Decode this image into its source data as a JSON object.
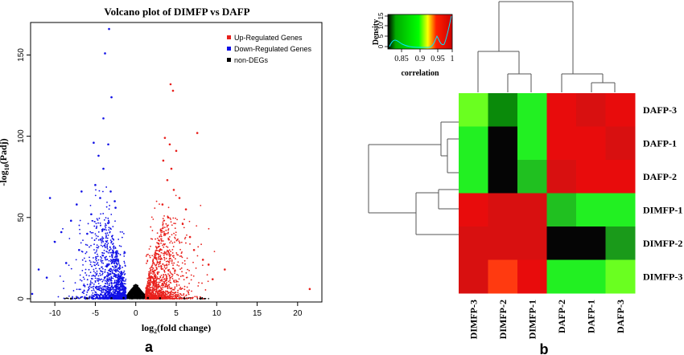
{
  "figure": {
    "panel_a_label": "a",
    "panel_b_label": "b"
  },
  "chart_data": [
    {
      "type": "scatter",
      "title": "Volcano plot of DIMFP vs DAFP",
      "xlabel": "log2(fold change)",
      "ylabel": "-log10(Padj)",
      "xlim": [
        -13,
        23
      ],
      "ylim": [
        -2,
        170
      ],
      "xticks": [
        -10,
        -5,
        0,
        5,
        10,
        15,
        20
      ],
      "yticks": [
        0,
        50,
        100,
        150
      ],
      "legend_position": "top-right",
      "series": [
        {
          "name": "Up-Regulated Genes",
          "color": "#e8201c",
          "points": [
            [
              4.3,
              132
            ],
            [
              4.6,
              128
            ],
            [
              7.6,
              102
            ],
            [
              3.6,
              99
            ],
            [
              4.2,
              95
            ],
            [
              5.0,
              91
            ],
            [
              3.4,
              85
            ],
            [
              4.4,
              80
            ],
            [
              3.9,
              73
            ],
            [
              4.7,
              67
            ],
            [
              5.4,
              62
            ],
            [
              3.3,
              58
            ],
            [
              6.2,
              55
            ],
            [
              4.0,
              50
            ],
            [
              5.8,
              46
            ],
            [
              3.1,
              42
            ],
            [
              6.7,
              38
            ],
            [
              7.2,
              30
            ],
            [
              8.3,
              24
            ],
            [
              9.0,
              21
            ],
            [
              11.0,
              18
            ],
            [
              21.5,
              6
            ],
            [
              9.5,
              12
            ],
            [
              2.8,
              34
            ],
            [
              3.6,
              28
            ]
          ]
        },
        {
          "name": "Down-Regulated Genes",
          "color": "#1010e6",
          "points": [
            [
              -3.3,
              166
            ],
            [
              -3.8,
              151
            ],
            [
              -3.0,
              124
            ],
            [
              -4.0,
              111
            ],
            [
              -5.2,
              96
            ],
            [
              -3.4,
              95
            ],
            [
              -4.6,
              88
            ],
            [
              -6.7,
              66
            ],
            [
              -7.3,
              58
            ],
            [
              -4.0,
              80
            ],
            [
              -5.0,
              70
            ],
            [
              -3.1,
              66
            ],
            [
              -2.6,
              60
            ],
            [
              -8.0,
              48
            ],
            [
              -9.2,
              41
            ],
            [
              -10.0,
              35
            ],
            [
              -10.6,
              62
            ],
            [
              -12.0,
              18
            ],
            [
              -11.0,
              13
            ],
            [
              -12.8,
              3
            ],
            [
              -2.5,
              56
            ],
            [
              -5.5,
              52
            ],
            [
              -4.4,
              62
            ],
            [
              -6.0,
              40
            ],
            [
              -7.0,
              30
            ],
            [
              -8.6,
              22
            ]
          ]
        },
        {
          "name": "non-DEGs",
          "color": "#000000",
          "points": [
            [
              0,
              1
            ],
            [
              0.5,
              4
            ],
            [
              -0.5,
              4
            ],
            [
              -1.0,
              1
            ],
            [
              1.0,
              1
            ],
            [
              0.2,
              8
            ],
            [
              -0.2,
              8
            ],
            [
              -1.5,
              0.5
            ],
            [
              1.5,
              0.5
            ],
            [
              -3,
              0.3
            ],
            [
              3,
              0.3
            ],
            [
              -6,
              0.2
            ],
            [
              6,
              0.2
            ],
            [
              8,
              0.1
            ],
            [
              -8,
              0.1
            ]
          ]
        }
      ]
    },
    {
      "type": "heatmap",
      "rows": [
        "DAFP-3",
        "DAFP-1",
        "DAFP-2",
        "DIMFP-1",
        "DIMFP-2",
        "DIMFP-3"
      ],
      "columns": [
        "DIMFP-3",
        "DIMFP-2",
        "DIMFP-1",
        "DAFP-2",
        "DAFP-1",
        "DAFP-3"
      ],
      "values": [
        [
          0.87,
          0.83,
          0.86,
          0.99,
          0.985,
          0.99
        ],
        [
          0.86,
          0.8,
          0.86,
          0.99,
          0.99,
          0.985
        ],
        [
          0.86,
          0.8,
          0.85,
          0.985,
          0.99,
          0.99
        ],
        [
          0.99,
          0.985,
          0.985,
          0.85,
          0.86,
          0.86
        ],
        [
          0.985,
          0.985,
          0.985,
          0.8,
          0.8,
          0.84
        ],
        [
          0.985,
          0.98,
          0.99,
          0.86,
          0.86,
          0.87
        ]
      ],
      "legend": {
        "xlabel": "correlation",
        "ylabel": "Density",
        "xticks": [
          "0.85",
          "0.9",
          "0.95",
          "1"
        ],
        "yticks": [
          "0",
          "5",
          "10",
          "15"
        ],
        "colors": [
          "#000000",
          "#00ff00",
          "#ffff00",
          "#ff0000"
        ]
      }
    }
  ]
}
